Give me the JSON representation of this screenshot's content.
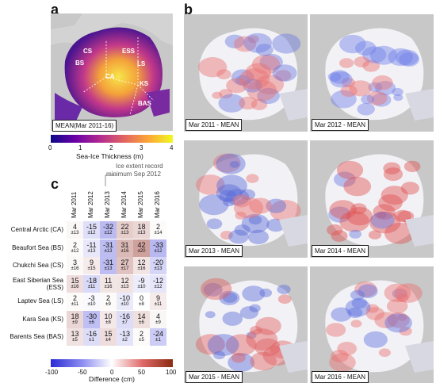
{
  "panel_a": {
    "label": "a",
    "caption": "MEAN(Mar 2011-16)",
    "regions": [
      "CS",
      "ESS",
      "BS",
      "LS",
      "CA",
      "KS",
      "BAS"
    ],
    "colorbar": {
      "ticks": [
        "0",
        "1",
        "2",
        "3",
        "4"
      ],
      "title": "Sea-Ice Thickness (m)"
    }
  },
  "panel_b": {
    "label": "b",
    "captions": [
      "Mar 2011 - MEAN",
      "Mar 2012 - MEAN",
      "Mar 2013 - MEAN",
      "Mar 2014 - MEAN",
      "Mar 2015 - MEAN",
      "Mar 2016 - MEAN"
    ]
  },
  "panel_c": {
    "label": "c",
    "annotation_line1": "Ice extent record",
    "annotation_line2": "minimum Sep 2012",
    "colorbar": {
      "ticks": [
        "-100",
        "-50",
        "0",
        "50",
        "100"
      ],
      "title": "Difference (cm)"
    }
  },
  "chart_data": {
    "type": "heatmap",
    "columns": [
      "Mar 2011",
      "Mar 2012",
      "Mar 2013",
      "Mar 2014",
      "Mar 2015",
      "Mar 2016"
    ],
    "rows": [
      "Central Arctic (CA)",
      "Beaufort Sea (BS)",
      "Chukchi Sea (CS)",
      "East Siberian Sea (ESS)",
      "Laptev Sea (LS)",
      "Kara Sea (KS)",
      "Barents Sea (BAS)"
    ],
    "values": [
      [
        4,
        -15,
        -32,
        22,
        18,
        2
      ],
      [
        2,
        -11,
        -31,
        31,
        42,
        -33
      ],
      [
        3,
        9,
        -31,
        27,
        12,
        -20
      ],
      [
        15,
        -18,
        11,
        12,
        -9,
        -12
      ],
      [
        2,
        -3,
        2,
        -10,
        0,
        9
      ],
      [
        18,
        -30,
        10,
        -16,
        14,
        4
      ],
      [
        13,
        -16,
        15,
        -13,
        2,
        -24
      ]
    ],
    "errors": [
      [
        "±13",
        "±12",
        "±12",
        "±13",
        "±13",
        "±14"
      ],
      [
        "±12",
        "±13",
        "±13",
        "±16",
        "±20",
        "±12"
      ],
      [
        "±16",
        "±15",
        "±13",
        "±17",
        "±16",
        "±13"
      ],
      [
        "±16",
        "±11",
        "±16",
        "±13",
        "±10",
        "±12"
      ],
      [
        "±11",
        "±10",
        "±9",
        "±10",
        "±8",
        "±11"
      ],
      [
        "±9",
        "±6",
        "±8",
        "±7",
        "±6",
        "±9"
      ],
      [
        "±5",
        "±1",
        "±4",
        "±2",
        "±5",
        "±1"
      ]
    ],
    "color_range": [
      -100,
      100
    ]
  }
}
